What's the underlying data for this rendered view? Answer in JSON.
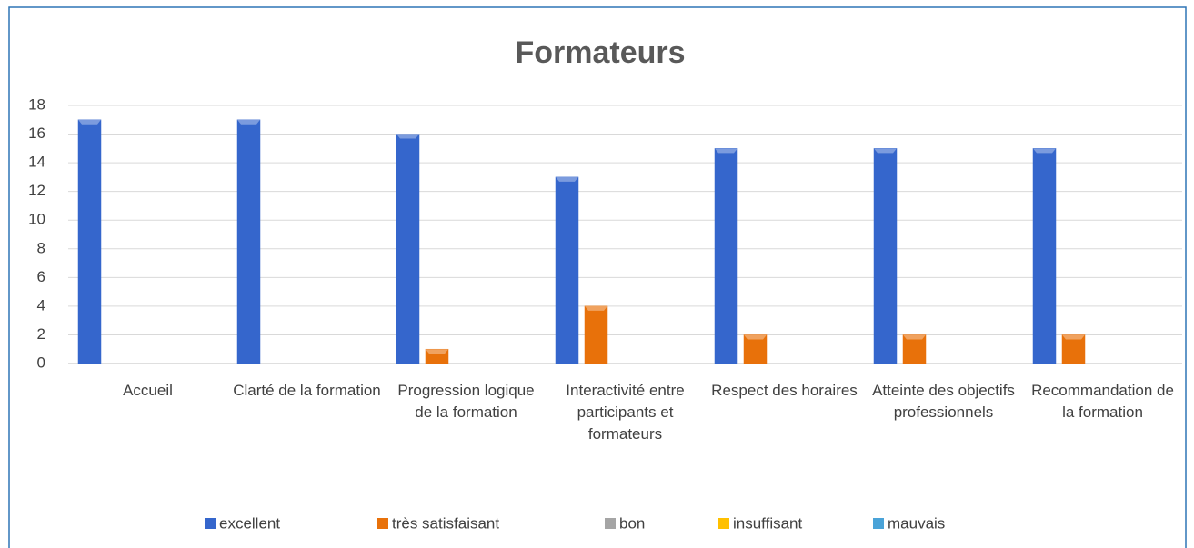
{
  "chart_data": {
    "type": "bar",
    "title": "Formateurs",
    "categories": [
      "Accueil",
      "Clarté de la formation",
      "Progression logique de la formation",
      "Interactivité entre participants et formateurs",
      "Respect des horaires",
      "Atteinte des objectifs professionnels",
      "Recommandation de la formation"
    ],
    "series": [
      {
        "name": "excellent",
        "color": "#3566cc",
        "values": [
          17,
          17,
          16,
          13,
          15,
          15,
          15
        ]
      },
      {
        "name": "très satisfaisant",
        "color": "#e8710a",
        "values": [
          0,
          0,
          1,
          4,
          2,
          2,
          2
        ]
      },
      {
        "name": "bon",
        "color": "#a5a5a5",
        "values": [
          0,
          0,
          0,
          0,
          0,
          0,
          0
        ]
      },
      {
        "name": "insuffisant",
        "color": "#ffc000",
        "values": [
          0,
          0,
          0,
          0,
          0,
          0,
          0
        ]
      },
      {
        "name": "mauvais",
        "color": "#4aa3d8",
        "values": [
          0,
          0,
          0,
          0,
          0,
          0,
          0
        ]
      }
    ],
    "ylim": [
      0,
      18
    ],
    "yticks": [
      0,
      2,
      4,
      6,
      8,
      10,
      12,
      14,
      16,
      18
    ],
    "grid": true,
    "legend": "bottom"
  }
}
